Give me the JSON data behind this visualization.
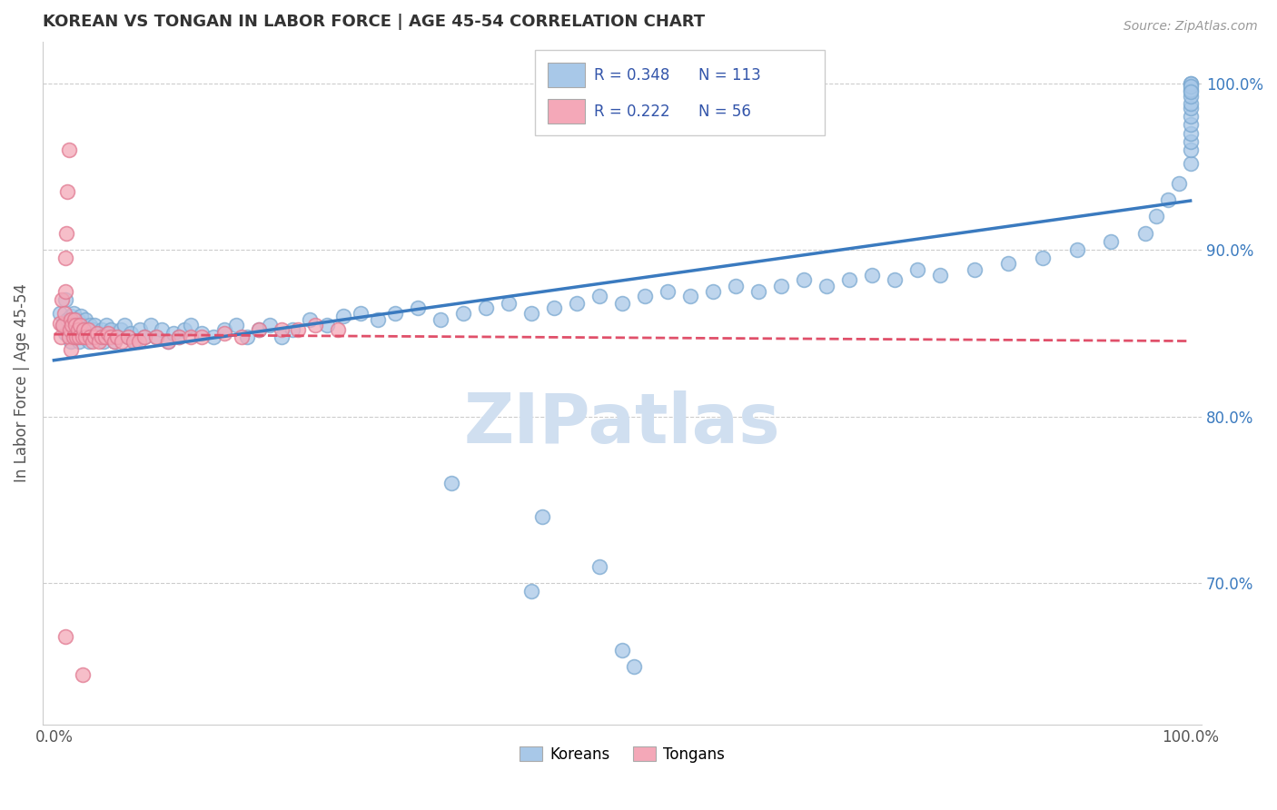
{
  "title": "KOREAN VS TONGAN IN LABOR FORCE | AGE 45-54 CORRELATION CHART",
  "source_text": "Source: ZipAtlas.com",
  "ylabel": "In Labor Force | Age 45-54",
  "xlim": [
    -0.01,
    1.01
  ],
  "ylim": [
    0.615,
    1.025
  ],
  "x_tick_vals": [
    0.0,
    1.0
  ],
  "x_tick_labels": [
    "0.0%",
    "100.0%"
  ],
  "y_tick_vals_right": [
    0.7,
    0.8,
    0.9,
    1.0
  ],
  "y_tick_labels_right": [
    "70.0%",
    "80.0%",
    "90.0%",
    "100.0%"
  ],
  "korean_R": 0.348,
  "korean_N": 113,
  "tongan_R": 0.222,
  "tongan_N": 56,
  "korean_color": "#A8C8E8",
  "tongan_color": "#F4A8B8",
  "korean_edge_color": "#7AA8D0",
  "tongan_edge_color": "#E07890",
  "korean_line_color": "#3A7ABF",
  "tongan_line_color": "#E0506A",
  "tongan_dash_color": "#E8909A",
  "watermark": "ZIPatlas",
  "watermark_color": "#D0DFF0",
  "background_color": "#FFFFFF",
  "grid_color": "#CCCCCC",
  "legend_color": "#3355AA",
  "title_color": "#333333",
  "source_color": "#999999",
  "korean_x": [
    0.005,
    0.008,
    0.01,
    0.01,
    0.012,
    0.013,
    0.015,
    0.015,
    0.016,
    0.017,
    0.018,
    0.019,
    0.02,
    0.021,
    0.022,
    0.023,
    0.024,
    0.025,
    0.026,
    0.027,
    0.028,
    0.03,
    0.031,
    0.032,
    0.033,
    0.035,
    0.036,
    0.038,
    0.04,
    0.042,
    0.044,
    0.046,
    0.048,
    0.05,
    0.053,
    0.056,
    0.059,
    0.062,
    0.065,
    0.068,
    0.072,
    0.076,
    0.08,
    0.085,
    0.09,
    0.095,
    0.1,
    0.105,
    0.11,
    0.115,
    0.12,
    0.13,
    0.14,
    0.15,
    0.16,
    0.17,
    0.18,
    0.19,
    0.2,
    0.21,
    0.225,
    0.24,
    0.255,
    0.27,
    0.285,
    0.3,
    0.32,
    0.34,
    0.36,
    0.38,
    0.4,
    0.42,
    0.44,
    0.46,
    0.48,
    0.5,
    0.52,
    0.54,
    0.56,
    0.58,
    0.6,
    0.62,
    0.64,
    0.66,
    0.68,
    0.7,
    0.72,
    0.74,
    0.76,
    0.78,
    0.81,
    0.84,
    0.87,
    0.9,
    0.93,
    0.96,
    0.97,
    0.98,
    0.99,
    1.0,
    1.0,
    1.0,
    1.0,
    1.0,
    1.0,
    1.0,
    1.0,
    1.0,
    1.0,
    1.0,
    1.0,
    1.0,
    1.0
  ],
  "korean_y": [
    0.862,
    0.855,
    0.87,
    0.85,
    0.858,
    0.852,
    0.86,
    0.845,
    0.855,
    0.862,
    0.848,
    0.855,
    0.852,
    0.858,
    0.845,
    0.85,
    0.86,
    0.848,
    0.855,
    0.85,
    0.858,
    0.852,
    0.845,
    0.855,
    0.848,
    0.852,
    0.855,
    0.848,
    0.85,
    0.852,
    0.845,
    0.855,
    0.848,
    0.852,
    0.845,
    0.848,
    0.852,
    0.855,
    0.848,
    0.85,
    0.845,
    0.852,
    0.848,
    0.855,
    0.848,
    0.852,
    0.845,
    0.85,
    0.848,
    0.852,
    0.855,
    0.85,
    0.848,
    0.852,
    0.855,
    0.848,
    0.852,
    0.855,
    0.848,
    0.852,
    0.858,
    0.855,
    0.86,
    0.862,
    0.858,
    0.862,
    0.865,
    0.858,
    0.862,
    0.865,
    0.868,
    0.862,
    0.865,
    0.868,
    0.872,
    0.868,
    0.872,
    0.875,
    0.872,
    0.875,
    0.878,
    0.875,
    0.878,
    0.882,
    0.878,
    0.882,
    0.885,
    0.882,
    0.888,
    0.885,
    0.888,
    0.892,
    0.895,
    0.9,
    0.905,
    0.91,
    0.92,
    0.93,
    0.94,
    0.952,
    0.96,
    0.965,
    0.97,
    0.975,
    0.98,
    0.985,
    0.988,
    0.992,
    0.996,
    1.0,
    1.0,
    0.998,
    0.995
  ],
  "korean_outliers_x": [
    0.35,
    0.43,
    0.5,
    0.51,
    0.42,
    0.48
  ],
  "korean_outliers_y": [
    0.76,
    0.74,
    0.66,
    0.65,
    0.695,
    0.71
  ],
  "tongan_x": [
    0.005,
    0.006,
    0.007,
    0.008,
    0.009,
    0.01,
    0.01,
    0.011,
    0.012,
    0.013,
    0.013,
    0.014,
    0.015,
    0.015,
    0.016,
    0.017,
    0.018,
    0.019,
    0.02,
    0.021,
    0.022,
    0.023,
    0.025,
    0.026,
    0.028,
    0.03,
    0.032,
    0.034,
    0.036,
    0.038,
    0.04,
    0.042,
    0.045,
    0.048,
    0.05,
    0.053,
    0.056,
    0.06,
    0.065,
    0.07,
    0.075,
    0.08,
    0.09,
    0.1,
    0.11,
    0.12,
    0.13,
    0.15,
    0.165,
    0.18,
    0.2,
    0.215,
    0.23,
    0.25,
    0.01,
    0.025
  ],
  "tongan_y": [
    0.856,
    0.848,
    0.87,
    0.855,
    0.862,
    0.875,
    0.895,
    0.91,
    0.935,
    0.96,
    0.848,
    0.852,
    0.84,
    0.858,
    0.855,
    0.848,
    0.858,
    0.855,
    0.848,
    0.852,
    0.848,
    0.855,
    0.848,
    0.852,
    0.848,
    0.852,
    0.848,
    0.845,
    0.848,
    0.85,
    0.845,
    0.848,
    0.848,
    0.85,
    0.848,
    0.845,
    0.848,
    0.845,
    0.848,
    0.845,
    0.845,
    0.848,
    0.848,
    0.845,
    0.848,
    0.848,
    0.848,
    0.85,
    0.848,
    0.852,
    0.852,
    0.852,
    0.855,
    0.852,
    0.668,
    0.645
  ]
}
